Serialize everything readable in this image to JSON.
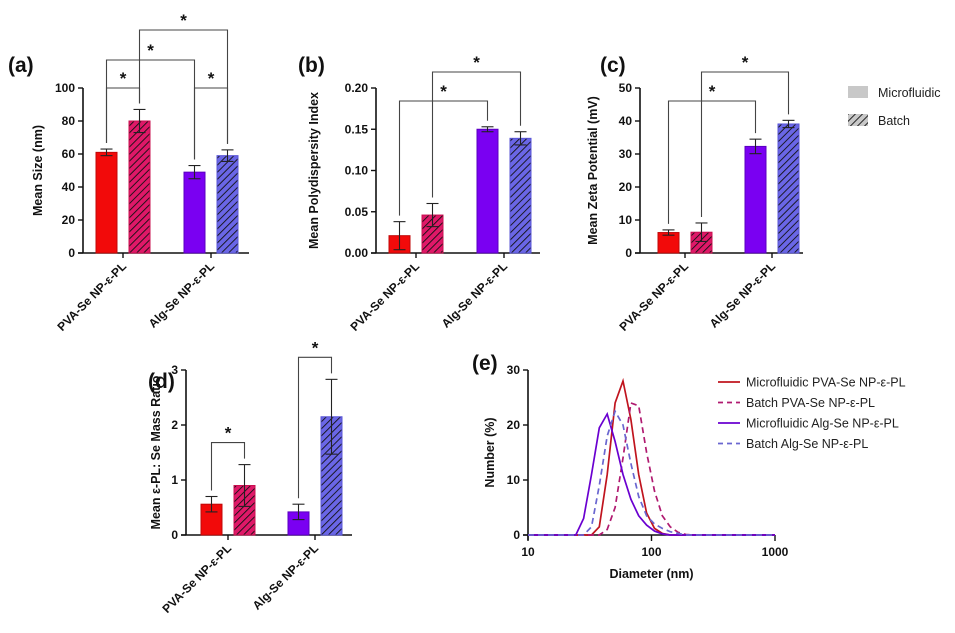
{
  "figure": {
    "legend_bars": {
      "items": [
        {
          "label": "Microfluidic",
          "style": "solid"
        },
        {
          "label": "Batch",
          "style": "hatched"
        }
      ],
      "swatch_color": "#c8c8c8",
      "placement": "right of panel (c)"
    },
    "colors": {
      "microfluidic_pva": "#f20a0a",
      "batch_pva": "#df1868",
      "microfluidic_alg": "#7a00f2",
      "batch_alg": "#6a66e6",
      "hatch": "#111111"
    }
  },
  "chart_data": [
    {
      "panel": "(a)",
      "type": "bar",
      "ylabel": "Mean Size (nm)",
      "xlabel": "",
      "ylim": [
        0,
        100
      ],
      "yticks": [
        0,
        20,
        40,
        60,
        80,
        100
      ],
      "yticklabels": [
        "0",
        "20",
        "40",
        "60",
        "80",
        "100"
      ],
      "categories": [
        "PVA-Se NP-ε-PL",
        "Alg-Se NP-ε-PL"
      ],
      "series": [
        {
          "name": "Microfluidic",
          "values": [
            61,
            49
          ],
          "errors": [
            2,
            4
          ]
        },
        {
          "name": "Batch",
          "values": [
            80,
            59
          ],
          "errors": [
            7,
            3.5
          ]
        }
      ],
      "significance": [
        {
          "from": "PVA-Se NP-ε-PL|Microfluidic",
          "to": "PVA-Se NP-ε-PL|Batch",
          "label": "*"
        },
        {
          "from": "Alg-Se NP-ε-PL|Microfluidic",
          "to": "Alg-Se NP-ε-PL|Batch",
          "label": "*"
        },
        {
          "from": "PVA-Se NP-ε-PL|Microfluidic",
          "to": "Alg-Se NP-ε-PL|Microfluidic",
          "label": "*"
        },
        {
          "from": "PVA-Se NP-ε-PL|Batch",
          "to": "Alg-Se NP-ε-PL|Batch",
          "label": "*"
        }
      ]
    },
    {
      "panel": "(b)",
      "type": "bar",
      "ylabel": "Mean Polydispersity Index",
      "xlabel": "",
      "ylim": [
        0,
        0.2
      ],
      "yticks": [
        0,
        0.05,
        0.1,
        0.15,
        0.2
      ],
      "yticklabels": [
        "0.00",
        "0.05",
        "0.10",
        "0.15",
        "0.20"
      ],
      "categories": [
        "PVA-Se NP-ε-PL",
        "Alg-Se NP-ε-PL"
      ],
      "series": [
        {
          "name": "Microfluidic",
          "values": [
            0.021,
            0.15
          ],
          "errors": [
            0.017,
            0.003
          ]
        },
        {
          "name": "Batch",
          "values": [
            0.046,
            0.139
          ],
          "errors": [
            0.014,
            0.008
          ]
        }
      ],
      "significance": [
        {
          "from": "PVA-Se NP-ε-PL|Microfluidic",
          "to": "Alg-Se NP-ε-PL|Microfluidic",
          "label": "*"
        },
        {
          "from": "PVA-Se NP-ε-PL|Batch",
          "to": "Alg-Se NP-ε-PL|Batch",
          "label": "*"
        }
      ]
    },
    {
      "panel": "(c)",
      "type": "bar",
      "ylabel": "Mean Zeta Potential (mV)",
      "xlabel": "",
      "ylim": [
        0,
        50
      ],
      "yticks": [
        0,
        10,
        20,
        30,
        40,
        50
      ],
      "yticklabels": [
        "0",
        "10",
        "20",
        "30",
        "40",
        "50"
      ],
      "categories": [
        "PVA-Se NP-ε-PL",
        "Alg-Se NP-ε-PL"
      ],
      "series": [
        {
          "name": "Microfluidic",
          "values": [
            6.2,
            32.3
          ],
          "errors": [
            0.8,
            2.2
          ]
        },
        {
          "name": "Batch",
          "values": [
            6.3,
            39.1
          ],
          "errors": [
            2.8,
            1.1
          ]
        }
      ],
      "significance": [
        {
          "from": "PVA-Se NP-ε-PL|Microfluidic",
          "to": "Alg-Se NP-ε-PL|Microfluidic",
          "label": "*"
        },
        {
          "from": "PVA-Se NP-ε-PL|Batch",
          "to": "Alg-Se NP-ε-PL|Batch",
          "label": "*"
        }
      ]
    },
    {
      "panel": "(d)",
      "type": "bar",
      "ylabel": "Mean ε-PL: Se Mass Ratio",
      "xlabel": "",
      "ylim": [
        0,
        3
      ],
      "yticks": [
        0,
        1,
        2,
        3
      ],
      "yticklabels": [
        "0",
        "1",
        "2",
        "3"
      ],
      "categories": [
        "PVA-Se NP-ε-PL",
        "Alg-Se NP-ε-PL"
      ],
      "series": [
        {
          "name": "Microfluidic",
          "values": [
            0.56,
            0.42
          ],
          "errors": [
            0.14,
            0.14
          ]
        },
        {
          "name": "Batch",
          "values": [
            0.9,
            2.15
          ],
          "errors": [
            0.38,
            0.68
          ]
        }
      ],
      "significance": [
        {
          "from": "PVA-Se NP-ε-PL|Microfluidic",
          "to": "PVA-Se NP-ε-PL|Batch",
          "label": "*"
        },
        {
          "from": "Alg-Se NP-ε-PL|Microfluidic",
          "to": "Alg-Se NP-ε-PL|Batch",
          "label": "*"
        }
      ]
    },
    {
      "panel": "(e)",
      "type": "line",
      "xlabel": "Diameter (nm)",
      "ylabel": "Number (%)",
      "xscale": "log",
      "xlim": [
        10,
        1000
      ],
      "ylim": [
        0,
        30
      ],
      "xticks": [
        10,
        100,
        1000
      ],
      "xticklabels": [
        "10",
        "100",
        "1000"
      ],
      "yticks": [
        0,
        10,
        20,
        30
      ],
      "yticklabels": [
        "0",
        "10",
        "20",
        "30"
      ],
      "legend_position": "right",
      "series": [
        {
          "name": "Microfluidic PVA-Se NP-ε-PL",
          "dash": "solid",
          "color": "#c0141e",
          "x": [
            10,
            30,
            32.7,
            37.8,
            43.8,
            50.7,
            58.8,
            68.1,
            78.8,
            91.3,
            105.7,
            122.4,
            141.8,
            164.2,
            190,
            1000
          ],
          "y": [
            0,
            0,
            0,
            1.5,
            11,
            24,
            28,
            21,
            11,
            4,
            1.2,
            0.3,
            0,
            0,
            0,
            0
          ]
        },
        {
          "name": "Batch PVA-Se NP-ε-PL",
          "dash": "dashed",
          "color": "#b01a70",
          "x": [
            10,
            37.8,
            43.8,
            50.7,
            58.8,
            68.1,
            78.8,
            91.3,
            105.7,
            122.4,
            141.8,
            164.2,
            190,
            220,
            1000
          ],
          "y": [
            0,
            0,
            1,
            5,
            14,
            24,
            23.5,
            15,
            8,
            3.5,
            1.5,
            0.5,
            0.1,
            0,
            0
          ]
        },
        {
          "name": "Microfluidic Alg-Se NP-ε-PL",
          "dash": "solid",
          "color": "#6a00d0",
          "x": [
            10,
            24.4,
            28.2,
            32.7,
            37.8,
            43.8,
            50.7,
            58.8,
            68.1,
            78.8,
            91.3,
            105.7,
            122.4,
            141.8,
            1000
          ],
          "y": [
            0,
            0,
            3,
            11,
            19.5,
            22,
            17,
            11,
            6.5,
            3.5,
            1.8,
            0.7,
            0.2,
            0,
            0
          ]
        },
        {
          "name": "Batch Alg-Se NP-ε-PL",
          "dash": "dashed",
          "color": "#6a66d0",
          "x": [
            10,
            28.2,
            32.7,
            37.8,
            43.8,
            50.7,
            58.8,
            68.1,
            78.8,
            91.3,
            105.7,
            122.4,
            141.8,
            164.2,
            190,
            1000
          ],
          "y": [
            0,
            0,
            1.5,
            9,
            18,
            22.5,
            20,
            13,
            7,
            3.5,
            2,
            1.2,
            0.6,
            0.3,
            0,
            0
          ]
        }
      ]
    }
  ]
}
